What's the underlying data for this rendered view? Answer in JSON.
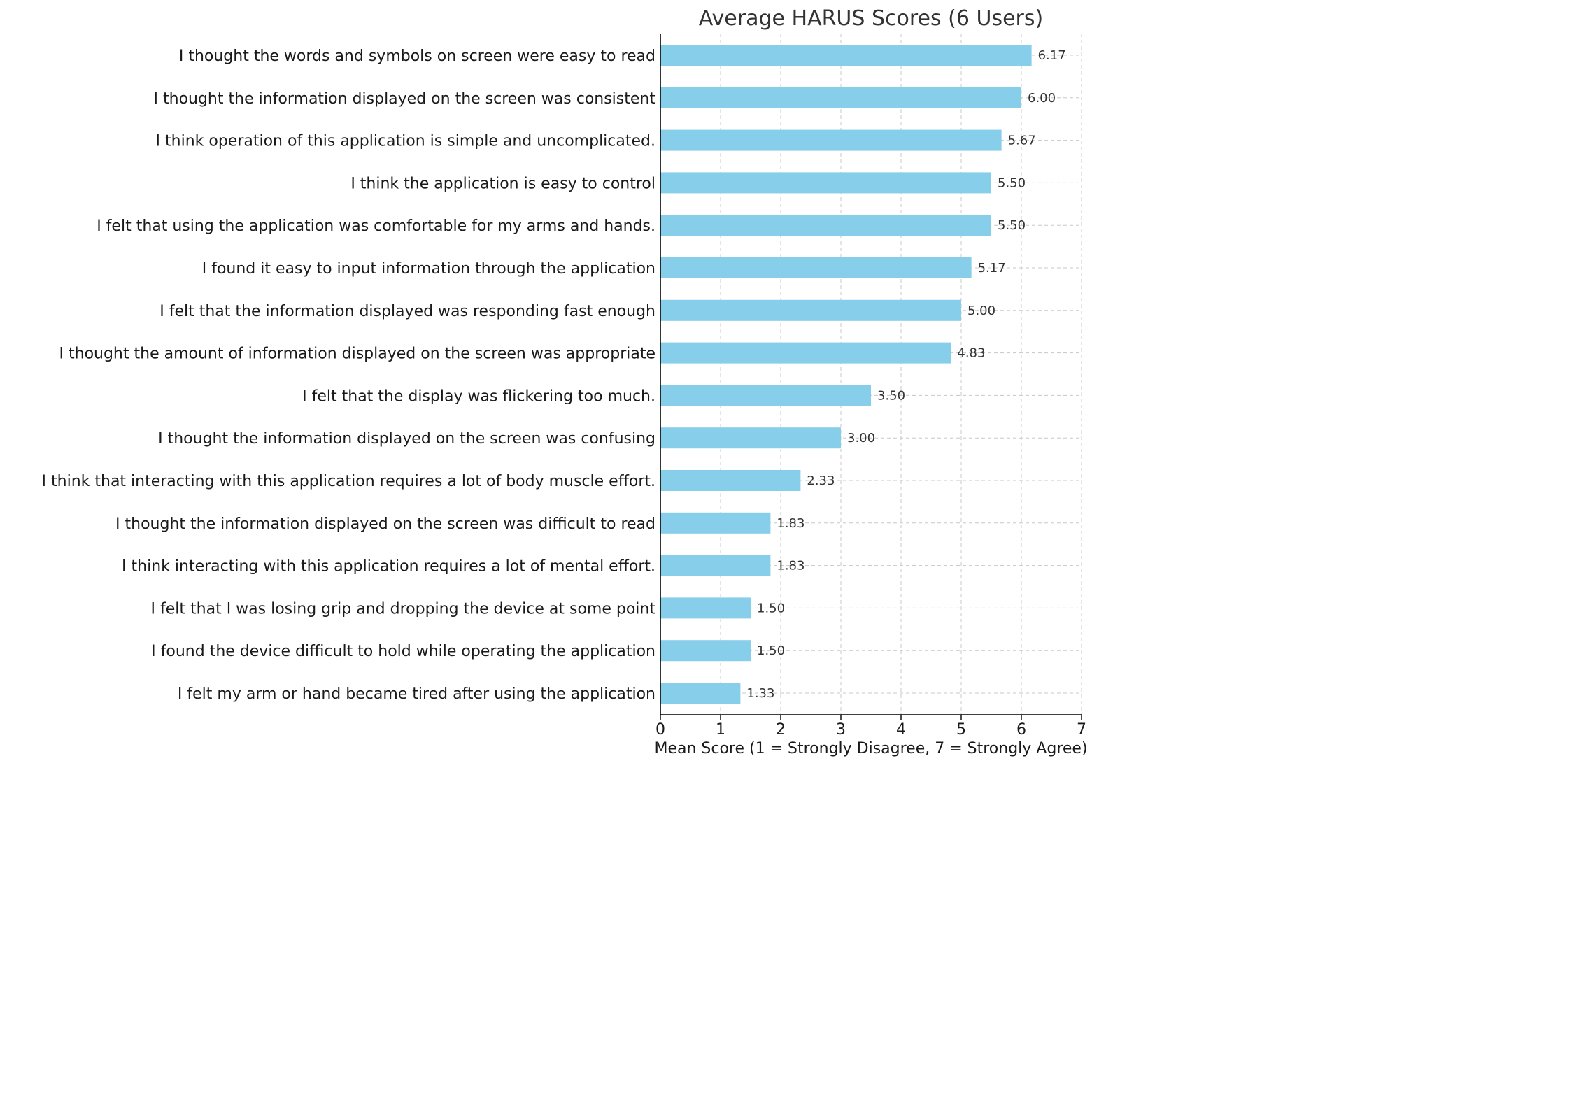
{
  "chart_data": {
    "type": "bar",
    "orientation": "horizontal",
    "title": "Average HARUS Scores (6 Users)",
    "xlabel": "Mean Score (1 = Strongly Disagree, 7 = Strongly Agree)",
    "ylabel": "",
    "xlim": [
      0,
      7
    ],
    "xticks": [
      0,
      1,
      2,
      3,
      4,
      5,
      6,
      7
    ],
    "grid": true,
    "bar_color": "#87CEEB",
    "categories": [
      "I thought the words and symbols on screen were easy to read",
      "I thought the information displayed on the screen was consistent",
      "I think operation of this application is simple and uncomplicated.",
      "I think the application is easy to control",
      "I felt that using the application was comfortable for my arms and hands.",
      "I found it easy to input information through the application",
      "I felt that the information displayed was responding fast enough",
      "I thought the amount of information displayed on the screen was appropriate ",
      "I felt that the display was flickering too much.",
      "I thought the information displayed on the screen was confusing",
      "I think that interacting with this application requires a lot of body muscle effort.",
      "I thought the information displayed on the screen was difficult to read",
      "I think interacting with this application requires a lot of mental effort.",
      "I felt that I was losing grip and dropping the device at some point ",
      "I found the device difficult to hold while operating the application",
      "I felt my arm or hand became tired after using the application"
    ],
    "values": [
      6.17,
      6.0,
      5.67,
      5.5,
      5.5,
      5.17,
      5.0,
      4.83,
      3.5,
      3.0,
      2.33,
      1.83,
      1.83,
      1.5,
      1.5,
      1.33
    ],
    "value_labels": [
      "6.17",
      "6.00",
      "5.67",
      "5.50",
      "5.50",
      "5.17",
      "5.00",
      "4.83",
      "3.50",
      "3.00",
      "2.33",
      "1.83",
      "1.83",
      "1.50",
      "1.50",
      "1.33"
    ]
  }
}
